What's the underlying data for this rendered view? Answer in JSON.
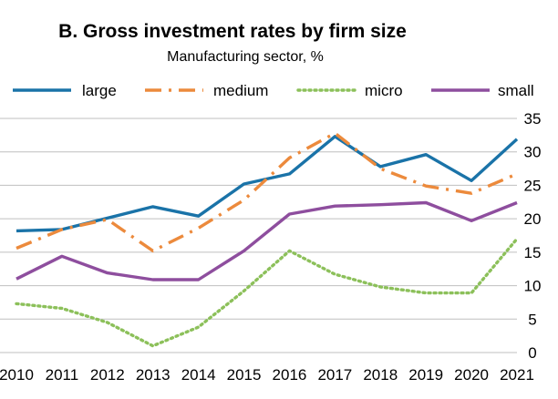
{
  "chart_data": {
    "type": "line",
    "title": "B. Gross investment rates by firm size",
    "subtitle": "Manufacturing sector, %",
    "xlabel": "",
    "ylabel": "",
    "x": [
      2010,
      2011,
      2012,
      2013,
      2014,
      2015,
      2016,
      2017,
      2018,
      2019,
      2020,
      2021
    ],
    "x_tick_labels": [
      "2010",
      "2011",
      "2012",
      "2013",
      "2014",
      "2015",
      "2016",
      "2017",
      "2018",
      "2019",
      "2020",
      "2021"
    ],
    "ylim": [
      0,
      35
    ],
    "y_ticks": [
      0,
      5,
      10,
      15,
      20,
      25,
      30,
      35
    ],
    "y_axis_side": "right",
    "grid": true,
    "legend_position": "top",
    "series": [
      {
        "name": "large",
        "color": "#1a73a8",
        "style": "solid",
        "values": [
          18.2,
          18.4,
          20.1,
          21.8,
          20.4,
          25.2,
          26.7,
          32.3,
          27.8,
          29.6,
          25.7,
          31.9
        ]
      },
      {
        "name": "medium",
        "color": "#ec8a3c",
        "style": "dashdot",
        "values": [
          15.6,
          18.4,
          19.9,
          15.2,
          18.6,
          22.8,
          29.1,
          32.8,
          27.5,
          24.9,
          23.8,
          26.7
        ]
      },
      {
        "name": "micro",
        "color": "#8cc05a",
        "style": "dotted",
        "values": [
          7.3,
          6.6,
          4.5,
          1.0,
          3.8,
          9.2,
          15.2,
          11.7,
          9.8,
          8.9,
          8.9,
          17.0
        ]
      },
      {
        "name": "small",
        "color": "#8e4e9e",
        "style": "solid",
        "values": [
          11.0,
          14.4,
          11.9,
          10.9,
          10.9,
          15.2,
          20.7,
          21.9,
          22.1,
          22.4,
          19.7,
          22.4
        ]
      }
    ]
  }
}
